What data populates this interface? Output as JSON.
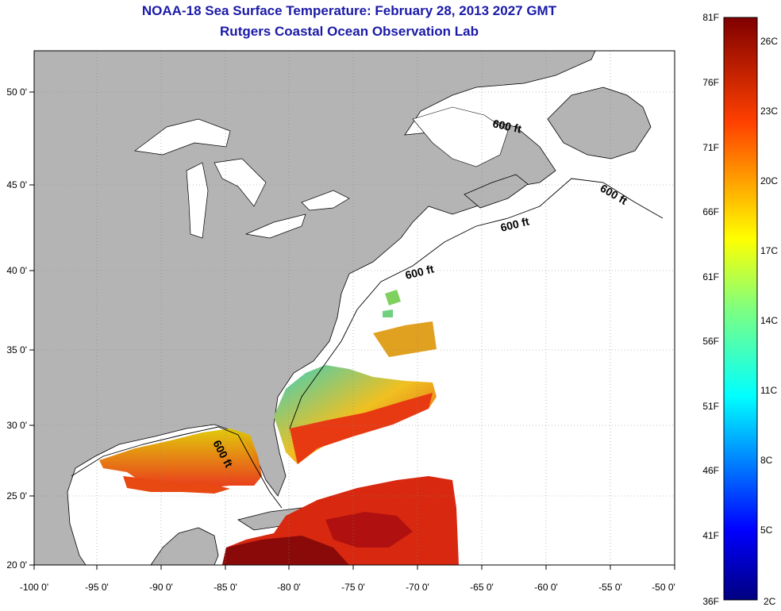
{
  "title_line1": "NOAA-18 Sea Surface Temperature:  February 28, 2013 2027 GMT",
  "title_line2": "Rutgers Coastal Ocean Observation Lab",
  "x_ticks": [
    "-100 0'",
    "-95 0'",
    "-90 0'",
    "-85 0'",
    "-80 0'",
    "-75 0'",
    "-70 0'",
    "-65 0'",
    "-60 0'",
    "-55 0'",
    "-50 0'"
  ],
  "y_ticks": [
    "50 0'",
    "45 0'",
    "40 0'",
    "35 0'",
    "30 0'",
    "25 0'",
    "20 0'"
  ],
  "isobath_label": "600 ft",
  "colorbar": {
    "fahrenheit": [
      "81F",
      "76F",
      "71F",
      "66F",
      "61F",
      "56F",
      "51F",
      "46F",
      "41F",
      "36F"
    ],
    "celsius": [
      "26C",
      "23C",
      "20C",
      "17C",
      "14C",
      "11C",
      "8C",
      "5C",
      "2C"
    ]
  },
  "colors": {
    "land": "#b4b4b4",
    "title": "#1a1aa8",
    "grid": "#888888"
  }
}
